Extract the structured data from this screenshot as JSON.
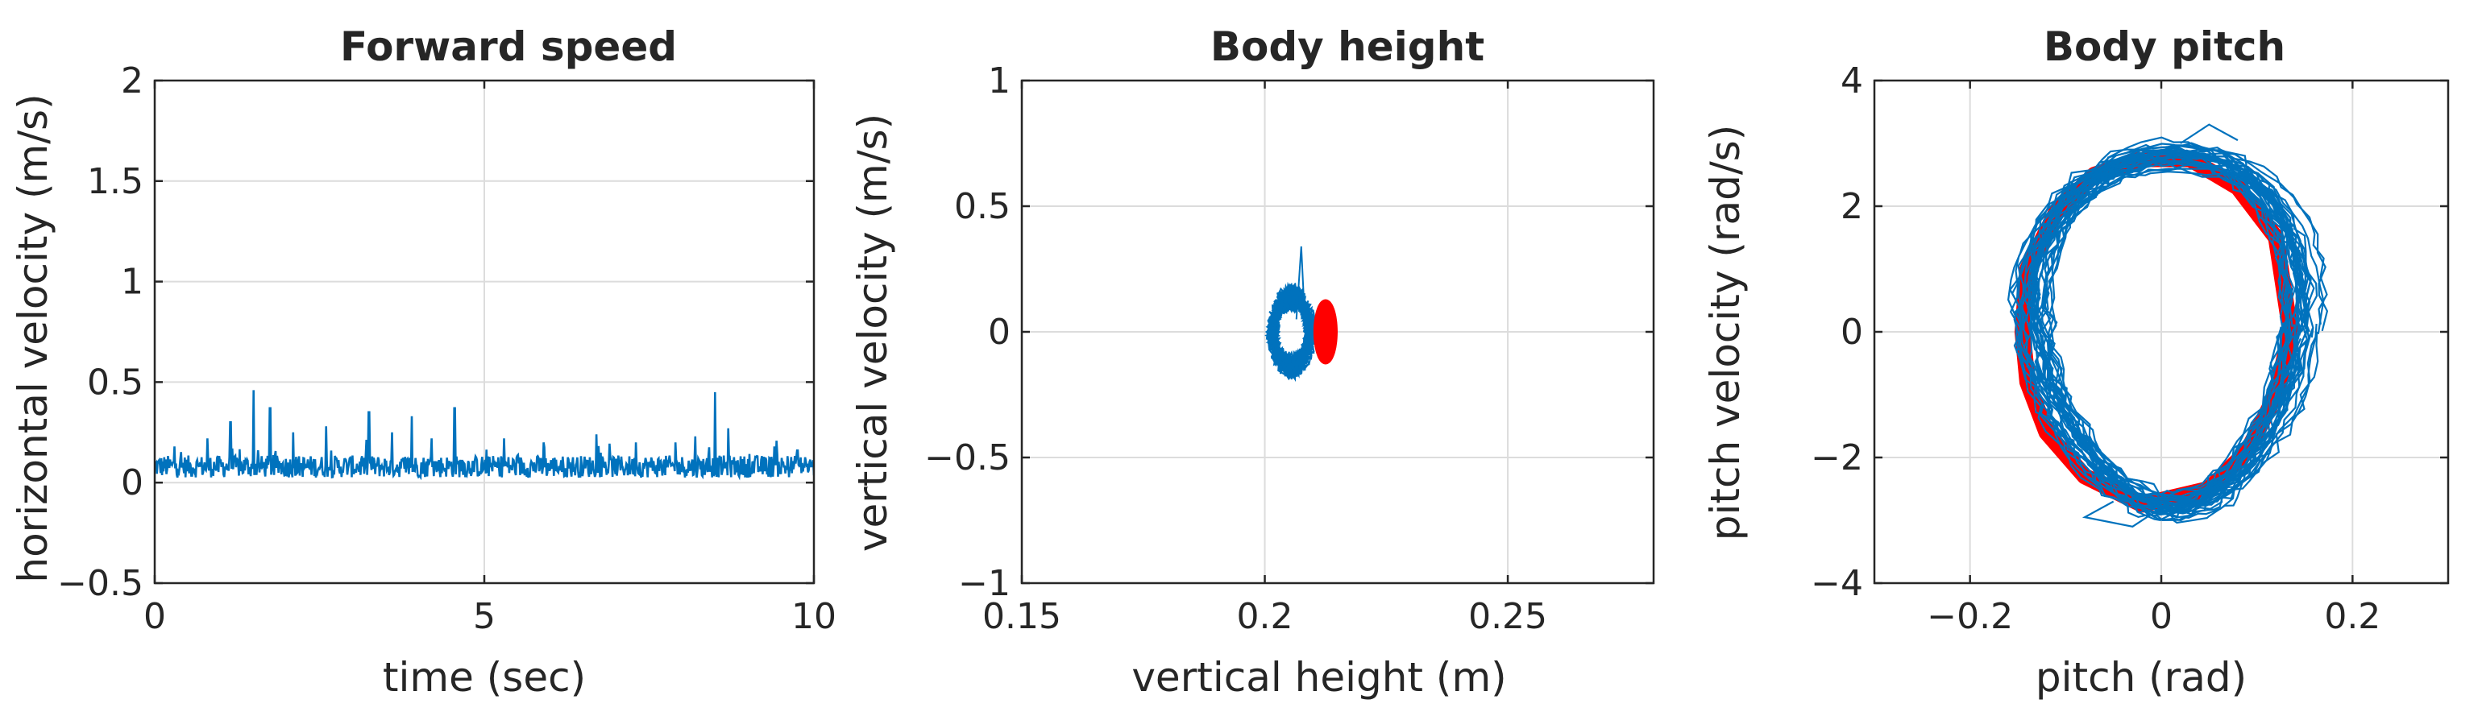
{
  "figure": {
    "colors": {
      "blue": "#0072BD",
      "red": "#FF0000",
      "grid": "#dcdcdc",
      "axis": "#262626"
    }
  },
  "chart_data": [
    {
      "type": "line",
      "title": "Forward speed",
      "xlabel": "time (sec)",
      "ylabel": "horizontal velocity (m/s)",
      "xlim": [
        0,
        10
      ],
      "ylim": [
        -0.5,
        2
      ],
      "xticks": [
        0,
        5,
        10
      ],
      "yticks": [
        -0.5,
        0,
        0.5,
        1,
        1.5,
        2
      ],
      "xtick_labels": [
        "0",
        "5",
        "10"
      ],
      "ytick_labels": [
        "−0.5",
        "0",
        "0.5",
        "1",
        "1.5",
        "2"
      ],
      "grid": true,
      "series": [
        {
          "color": "#0072BD",
          "description": "noisy trace, baseline about 0.08 m/s, spikes up to about 0.46 m/s",
          "x_range": [
            0,
            10
          ],
          "baseline": 0.08,
          "spikes": [
            {
              "x": 0.3,
              "y": 0.18
            },
            {
              "x": 0.8,
              "y": 0.22
            },
            {
              "x": 1.15,
              "y": 0.3
            },
            {
              "x": 1.5,
              "y": 0.46
            },
            {
              "x": 1.75,
              "y": 0.37
            },
            {
              "x": 2.1,
              "y": 0.25
            },
            {
              "x": 2.6,
              "y": 0.28
            },
            {
              "x": 3.25,
              "y": 0.35
            },
            {
              "x": 3.6,
              "y": 0.25
            },
            {
              "x": 3.9,
              "y": 0.33
            },
            {
              "x": 4.2,
              "y": 0.22
            },
            {
              "x": 4.55,
              "y": 0.37
            },
            {
              "x": 5.3,
              "y": 0.22
            },
            {
              "x": 5.9,
              "y": 0.2
            },
            {
              "x": 6.7,
              "y": 0.24
            },
            {
              "x": 7.3,
              "y": 0.2
            },
            {
              "x": 7.9,
              "y": 0.2
            },
            {
              "x": 8.2,
              "y": 0.23
            },
            {
              "x": 8.5,
              "y": 0.45
            },
            {
              "x": 8.7,
              "y": 0.27
            },
            {
              "x": 9.4,
              "y": 0.18
            },
            {
              "x": 9.75,
              "y": 0.16
            }
          ]
        }
      ]
    },
    {
      "type": "line",
      "title": "Body height",
      "xlabel": "vertical height (m)",
      "ylabel": "vertical velocity (m/s)",
      "xlim": [
        0.15,
        0.28
      ],
      "ylim": [
        -1,
        1
      ],
      "xticks": [
        0.15,
        0.2,
        0.25
      ],
      "yticks": [
        -1,
        -0.5,
        0,
        0.5,
        1
      ],
      "xtick_labels": [
        "0.15",
        "0.2",
        "0.25"
      ],
      "ytick_labels": [
        "−1",
        "−0.5",
        "0",
        "0.5",
        "1"
      ],
      "grid": true,
      "series": [
        {
          "color": "#0072BD",
          "description": "scattered limit cycles",
          "center": [
            0.2055,
            0.0
          ],
          "x_half_width": 0.0045,
          "y_half_height": 0.16,
          "max_y": 0.34
        },
        {
          "color": "#FF0000",
          "description": "reference orbit",
          "center": [
            0.2125,
            0.0
          ],
          "x_half_width": 0.002,
          "y_half_height": 0.12
        }
      ]
    },
    {
      "type": "line",
      "title": "Body pitch",
      "xlabel": "pitch (rad)",
      "ylabel": "pitch velocity (rad/s)",
      "xlim": [
        -0.3,
        0.3
      ],
      "ylim": [
        -4,
        4
      ],
      "xticks": [
        -0.2,
        0,
        0.2
      ],
      "yticks": [
        -4,
        -2,
        0,
        2,
        4
      ],
      "xtick_labels": [
        "−0.2",
        "0",
        "0.2"
      ],
      "ytick_labels": [
        "−4",
        "−2",
        "0",
        "2",
        "4"
      ],
      "grid": true,
      "series": [
        {
          "color": "#FF0000",
          "description": "reference orbit",
          "points": [
            [
              -0.02,
              2.75
            ],
            [
              0.03,
              2.75
            ],
            [
              0.08,
              2.3
            ],
            [
              0.12,
              1.5
            ],
            [
              0.13,
              0.5
            ],
            [
              0.135,
              0.0
            ],
            [
              0.12,
              -1.0
            ],
            [
              0.09,
              -1.9
            ],
            [
              0.05,
              -2.5
            ],
            [
              -0.02,
              -2.75
            ],
            [
              -0.08,
              -2.3
            ],
            [
              -0.12,
              -1.6
            ],
            [
              -0.14,
              -0.8
            ],
            [
              -0.145,
              0.0
            ],
            [
              -0.14,
              1.0
            ],
            [
              -0.11,
              1.9
            ],
            [
              -0.07,
              2.5
            ],
            [
              -0.02,
              2.75
            ]
          ]
        },
        {
          "color": "#0072BD",
          "description": "repeated orbits around the reference",
          "center": [
            0.005,
            0.0
          ],
          "x_half_width": 0.145,
          "y_half_height": 2.85,
          "max_y": 3.3,
          "min_y": -3.1
        }
      ]
    }
  ]
}
